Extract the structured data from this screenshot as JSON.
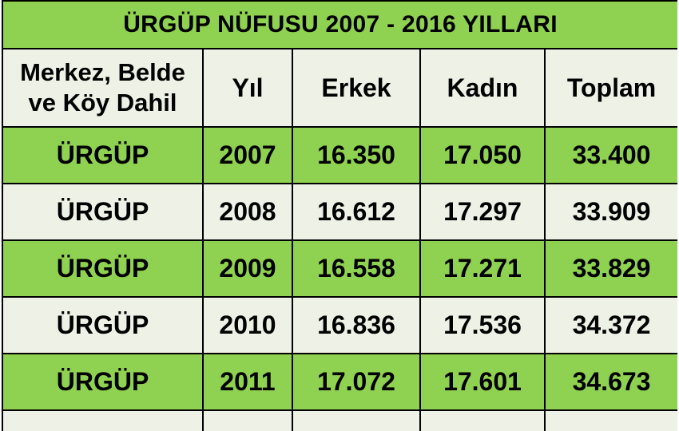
{
  "title": "ÜRGÜP NÜFUSU 2007 - 2016 YILLARI",
  "headers": {
    "location_line1": "Merkez, Belde",
    "location_line2": "ve Köy Dahil",
    "year": "Yıl",
    "male": "Erkek",
    "female": "Kadın",
    "total": "Toplam"
  },
  "rows": [
    {
      "location": "ÜRGÜP",
      "year": "2007",
      "male": "16.350",
      "female": "17.050",
      "total": "33.400"
    },
    {
      "location": "ÜRGÜP",
      "year": "2008",
      "male": "16.612",
      "female": "17.297",
      "total": "33.909"
    },
    {
      "location": "ÜRGÜP",
      "year": "2009",
      "male": "16.558",
      "female": "17.271",
      "total": "33.829"
    },
    {
      "location": "ÜRGÜP",
      "year": "2010",
      "male": "16.836",
      "female": "17.536",
      "total": "34.372"
    },
    {
      "location": "ÜRGÜP",
      "year": "2011",
      "male": "17.072",
      "female": "17.601",
      "total": "34.673"
    }
  ],
  "colors": {
    "green": "#8fd150",
    "light": "#eef1e6",
    "border": "#000000"
  }
}
